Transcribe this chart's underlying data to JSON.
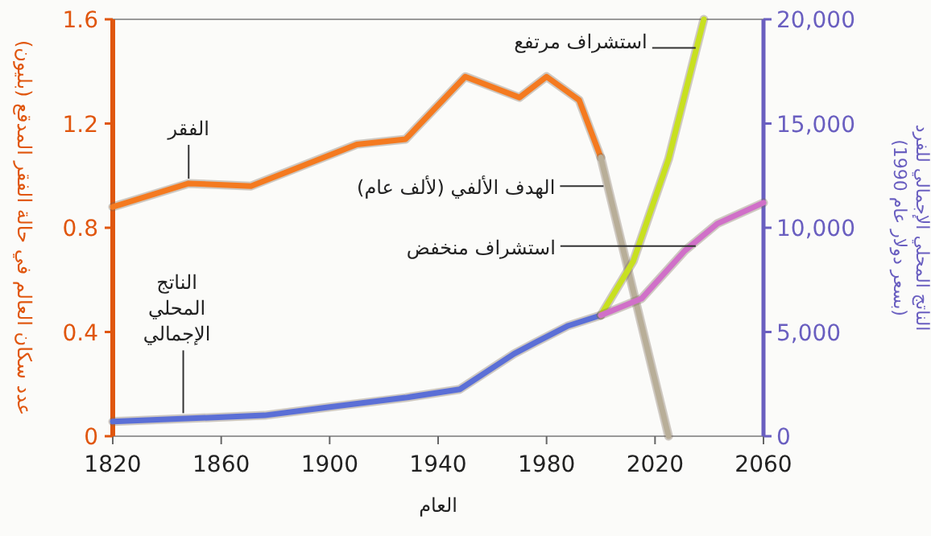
{
  "chart_data": {
    "type": "line",
    "xlabel": "العام",
    "ylabel": "عدد سكان العالم في حالة الفقر المدقع (بليون)",
    "y2label": "الناتج المحلي الإجمالي للفرد (بسعر دولار عام 1990)",
    "xlim": [
      1820,
      2060
    ],
    "xticks": [
      1820,
      1860,
      1900,
      1940,
      1980,
      2020,
      2060
    ],
    "ylim": [
      0,
      1.6
    ],
    "yticks": [
      0,
      0.4,
      0.8,
      1.2,
      1.6
    ],
    "y2lim": [
      0,
      20000
    ],
    "y2ticks": [
      0,
      {
        "value": 5000,
        "label": "5,000"
      },
      {
        "value": 10000,
        "label": "10,000"
      },
      {
        "value": 15000,
        "label": "15,000"
      },
      {
        "value": 20000,
        "label": "20,000"
      }
    ],
    "grid": false,
    "series": [
      {
        "color": "#f47a20",
        "x": [
          1820,
          1848,
          1871,
          1910,
          1928,
          1950,
          1970,
          1980,
          1992,
          2000
        ],
        "values": [
          0.88,
          0.97,
          0.96,
          1.12,
          1.14,
          1.38,
          1.3,
          1.38,
          1.29,
          1.07
        ]
      },
      {
        "color": "#b8ae98",
        "x": [
          2000,
          2025
        ],
        "values": [
          1.07,
          0
        ]
      },
      {
        "color": "#5b6fd6",
        "axis": "y2",
        "x": [
          1820,
          1876,
          1900,
          1928,
          1948,
          1968,
          1976,
          1988,
          2000
        ],
        "values": [
          700,
          1000,
          1400,
          1850,
          2250,
          3950,
          4500,
          5300,
          5800
        ]
      },
      {
        "color": "#c8e020",
        "axis": "y2",
        "x": [
          2000,
          2012,
          2025,
          2038
        ],
        "values": [
          5800,
          8400,
          13300,
          20000
        ]
      },
      {
        "color": "#d070c8",
        "axis": "y2",
        "x": [
          2000,
          2015,
          2031,
          2043,
          2060
        ],
        "values": [
          5800,
          6600,
          8900,
          10200,
          11200
        ]
      }
    ],
    "annotations": [
      {
        "text": "الفقر",
        "x": 1848,
        "y": 0.97
      },
      {
        "text": "الناتج المحلي الإجمالي",
        "x": 1846,
        "y": 0.07
      },
      {
        "text": "الهدف الألفي (لألف عام)",
        "x": 2001,
        "y": 0.96
      },
      {
        "text": "استشراف منخفض",
        "x": 2035,
        "y": 0.73
      },
      {
        "text": "استشراف مرتفع",
        "x": 2035,
        "y": 1.49
      }
    ]
  }
}
